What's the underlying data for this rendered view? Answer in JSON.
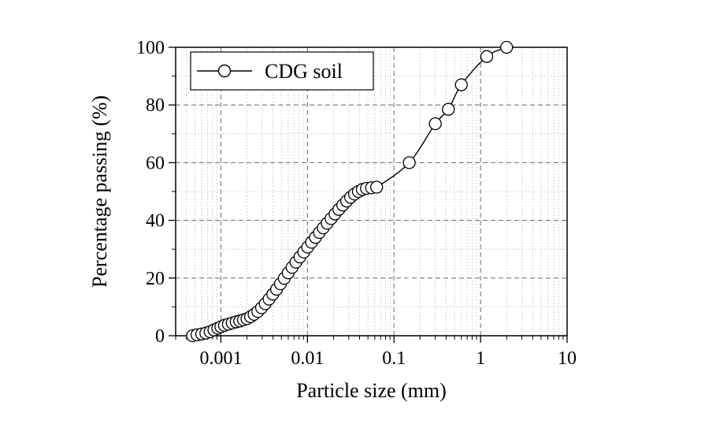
{
  "chart_data": {
    "type": "scatter",
    "xlabel": "Particle size (mm)",
    "ylabel": "Percentage passing (%)",
    "xscale": "log",
    "xlim": [
      0.0003,
      10
    ],
    "ylim": [
      0,
      100
    ],
    "x_ticks": [
      0.001,
      0.01,
      0.1,
      1,
      10
    ],
    "x_tick_labels": [
      "0.001",
      "0.01",
      "0.1",
      "1",
      "10"
    ],
    "y_ticks": [
      0,
      20,
      40,
      60,
      80,
      100
    ],
    "y_tick_labels": [
      "0",
      "20",
      "40",
      "60",
      "80",
      "100"
    ],
    "grid": true,
    "legend": {
      "position": "top-left",
      "entries": [
        "CDG soil"
      ]
    },
    "series": [
      {
        "name": "CDG soil",
        "marker": "open-circle",
        "line": true,
        "color": "#000000",
        "points": [
          {
            "x": 0.00047,
            "y": 0.0
          },
          {
            "x": 0.00053,
            "y": 0.3
          },
          {
            "x": 0.0006,
            "y": 0.6
          },
          {
            "x": 0.00067,
            "y": 0.9
          },
          {
            "x": 0.00075,
            "y": 1.4
          },
          {
            "x": 0.00083,
            "y": 2.0
          },
          {
            "x": 0.00092,
            "y": 2.6
          },
          {
            "x": 0.001,
            "y": 3.1
          },
          {
            "x": 0.0011,
            "y": 3.6
          },
          {
            "x": 0.00122,
            "y": 4.0
          },
          {
            "x": 0.00135,
            "y": 4.4
          },
          {
            "x": 0.0015,
            "y": 4.8
          },
          {
            "x": 0.00165,
            "y": 5.1
          },
          {
            "x": 0.00182,
            "y": 5.5
          },
          {
            "x": 0.002,
            "y": 5.9
          },
          {
            "x": 0.0022,
            "y": 6.6
          },
          {
            "x": 0.00242,
            "y": 7.4
          },
          {
            "x": 0.00267,
            "y": 8.4
          },
          {
            "x": 0.00295,
            "y": 9.7
          },
          {
            "x": 0.00325,
            "y": 11.1
          },
          {
            "x": 0.0036,
            "y": 12.7
          },
          {
            "x": 0.00398,
            "y": 14.4
          },
          {
            "x": 0.0044,
            "y": 16.1
          },
          {
            "x": 0.00487,
            "y": 18.0
          },
          {
            "x": 0.0054,
            "y": 19.9
          },
          {
            "x": 0.006,
            "y": 21.8
          },
          {
            "x": 0.00665,
            "y": 23.7
          },
          {
            "x": 0.00737,
            "y": 25.5
          },
          {
            "x": 0.00818,
            "y": 27.3
          },
          {
            "x": 0.00907,
            "y": 29.0
          },
          {
            "x": 0.01006,
            "y": 30.7
          },
          {
            "x": 0.01116,
            "y": 32.4
          },
          {
            "x": 0.01238,
            "y": 34.1
          },
          {
            "x": 0.01373,
            "y": 35.8
          },
          {
            "x": 0.01523,
            "y": 37.4
          },
          {
            "x": 0.0169,
            "y": 39.0
          },
          {
            "x": 0.01875,
            "y": 40.6
          },
          {
            "x": 0.0208,
            "y": 42.2
          },
          {
            "x": 0.02308,
            "y": 43.8
          },
          {
            "x": 0.0256,
            "y": 45.3
          },
          {
            "x": 0.0284,
            "y": 46.7
          },
          {
            "x": 0.03151,
            "y": 48.0
          },
          {
            "x": 0.03496,
            "y": 49.1
          },
          {
            "x": 0.03878,
            "y": 50.0
          },
          {
            "x": 0.04302,
            "y": 50.7
          },
          {
            "x": 0.048,
            "y": 51.1
          },
          {
            "x": 0.055,
            "y": 51.3
          },
          {
            "x": 0.063,
            "y": 51.5
          },
          {
            "x": 0.15,
            "y": 60.0
          },
          {
            "x": 0.3,
            "y": 73.5
          },
          {
            "x": 0.425,
            "y": 78.5
          },
          {
            "x": 0.6,
            "y": 87.0
          },
          {
            "x": 1.18,
            "y": 96.8
          },
          {
            "x": 2.0,
            "y": 100.0
          }
        ]
      }
    ]
  }
}
